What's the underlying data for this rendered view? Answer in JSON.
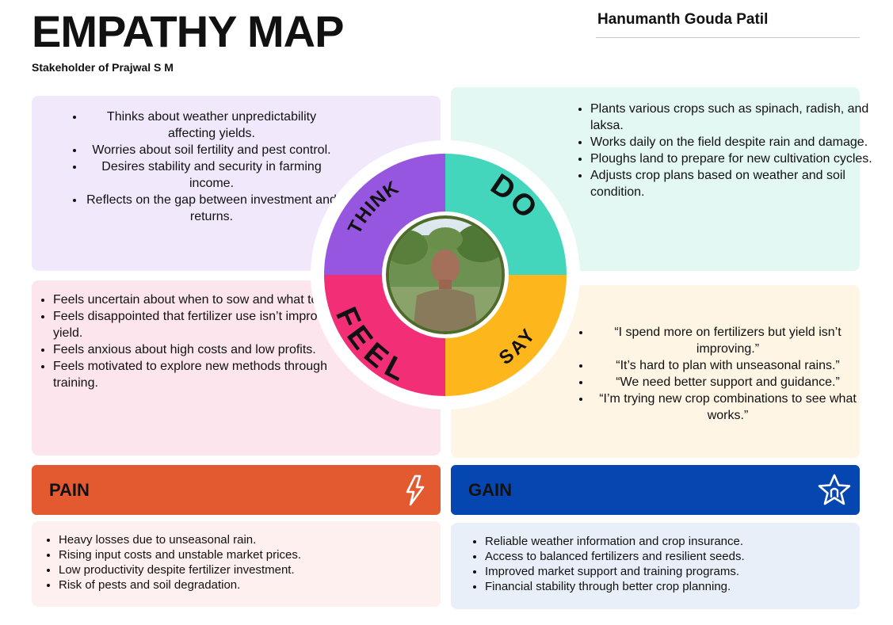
{
  "header": {
    "title": "EMPATHY MAP",
    "subtitle": "Stakeholder of Prajwal S M",
    "name": "Hanumanth Gouda Patil"
  },
  "wheel": {
    "labels": {
      "think": "THINK",
      "do": "DO",
      "feel": "FEEL",
      "say": "SAY"
    },
    "colors": {
      "think": "#9656e0",
      "do": "#44d6bd",
      "feel": "#f22e77",
      "say": "#fdb71d"
    }
  },
  "think": {
    "items": [
      "Thinks about weather unpredictability affecting yields.",
      "Worries about soil fertility and pest control.",
      "Desires stability and security in farming income.",
      "Reflects on the gap between investment and returns."
    ]
  },
  "do": {
    "items": [
      "Plants various crops such as spinach, radish, and laksa.",
      "Works daily on the field despite rain and damage.",
      "Ploughs land to prepare for new cultivation cycles.",
      "Adjusts crop plans based on weather and soil condition."
    ]
  },
  "feel": {
    "items": [
      "Feels uncertain about when to sow and what to plant.",
      "Feels disappointed that fertilizer use isn’t improving yield.",
      "Feels anxious about high costs and low profits.",
      "Feels motivated to explore new methods through training."
    ]
  },
  "say": {
    "items": [
      "“I spend more on fertilizers but yield isn’t improving.”",
      "“It’s hard to plan with unseasonal rains.”",
      "“We need better support and guidance.”",
      "“I’m trying new crop combinations to see what works.”"
    ]
  },
  "pain": {
    "label": "PAIN",
    "icon": "lightning-bolt-icon",
    "color": "#e45a30",
    "items": [
      "Heavy losses due to unseasonal rain.",
      "Rising input costs and unstable market prices.",
      "Low productivity despite fertilizer investment.",
      "Risk of pests and soil degradation."
    ]
  },
  "gain": {
    "label": "GAIN",
    "icon": "star-icon",
    "color": "#0546b0",
    "items": [
      "Reliable weather information and crop insurance.",
      "Access to balanced fertilizers and resilient seeds.",
      "Improved market support and training programs.",
      "Financial stability through better crop planning."
    ]
  }
}
